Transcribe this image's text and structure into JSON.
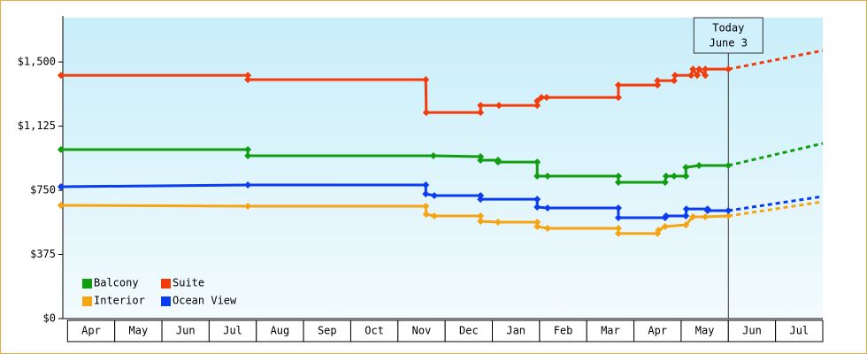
{
  "chart_data": {
    "type": "line",
    "categories": [
      "Apr",
      "May",
      "Jun",
      "Jul",
      "Aug",
      "Sep",
      "Oct",
      "Nov",
      "Dec",
      "Jan",
      "Feb",
      "Mar",
      "Apr",
      "May",
      "Jun",
      "Jul"
    ],
    "xlim": [
      -0.1,
      16
    ],
    "ylim": [
      0,
      1759
    ],
    "yticks": [
      {
        "value": 0,
        "label": "$0"
      },
      {
        "value": 375,
        "label": "$375"
      },
      {
        "value": 750,
        "label": "$750"
      },
      {
        "value": 1125,
        "label": "$1,125"
      },
      {
        "value": 1500,
        "label": "$1,500"
      }
    ],
    "today": {
      "x": 14,
      "lines": [
        "Today",
        "June 3"
      ]
    },
    "series": [
      {
        "name": "Balcony",
        "color": "#109d10",
        "x": [
          -0.14,
          3.82,
          3.82,
          7.75,
          8.75,
          8.75,
          9.12,
          9.12,
          9.95,
          9.95,
          10.17,
          11.67,
          11.67,
          12.66,
          12.68,
          12.85,
          13.1,
          13.1,
          13.38,
          14,
          16
        ],
        "values": [
          988,
          988,
          952,
          952,
          947,
          926,
          926,
          915,
          915,
          833,
          833,
          833,
          797,
          797,
          833,
          833,
          833,
          884,
          895,
          895,
          1024
        ]
      },
      {
        "name": "Suite",
        "color": "#f23c0c",
        "x": [
          -0.14,
          3.82,
          3.82,
          7.59,
          7.6,
          8.75,
          8.75,
          9.14,
          9.95,
          9.95,
          10.04,
          10.15,
          11.67,
          11.67,
          12.5,
          12.5,
          12.85,
          12.87,
          13.21,
          13.25,
          13.34,
          13.38,
          13.51,
          13.51,
          14,
          16
        ],
        "values": [
          1422,
          1422,
          1397,
          1397,
          1205,
          1205,
          1246,
          1246,
          1246,
          1272,
          1293,
          1293,
          1293,
          1365,
          1365,
          1391,
          1391,
          1422,
          1422,
          1458,
          1422,
          1458,
          1422,
          1458,
          1458,
          1567
        ]
      },
      {
        "name": "Interior",
        "color": "#f6a412",
        "x": [
          -0.14,
          3.82,
          7.59,
          7.6,
          7.77,
          8.75,
          8.75,
          9.12,
          9.95,
          9.95,
          10.17,
          11.67,
          11.67,
          12.5,
          12.52,
          12.66,
          13.1,
          13.25,
          13.51,
          14,
          16
        ],
        "values": [
          662,
          657,
          657,
          610,
          600,
          600,
          569,
          564,
          564,
          538,
          528,
          528,
          497,
          497,
          517,
          538,
          548,
          595,
          595,
          600,
          683
        ]
      },
      {
        "name": "Ocean View",
        "color": "#0c3cf0",
        "x": [
          -0.14,
          3.82,
          7.59,
          7.59,
          7.77,
          8.75,
          8.75,
          9.95,
          9.95,
          10.17,
          11.67,
          11.67,
          12.66,
          12.68,
          13.1,
          13.11,
          13.56,
          13.56,
          14,
          16
        ],
        "values": [
          771,
          781,
          781,
          729,
          719,
          719,
          698,
          698,
          652,
          647,
          647,
          590,
          590,
          600,
          600,
          641,
          641,
          631,
          631,
          714
        ]
      }
    ]
  }
}
